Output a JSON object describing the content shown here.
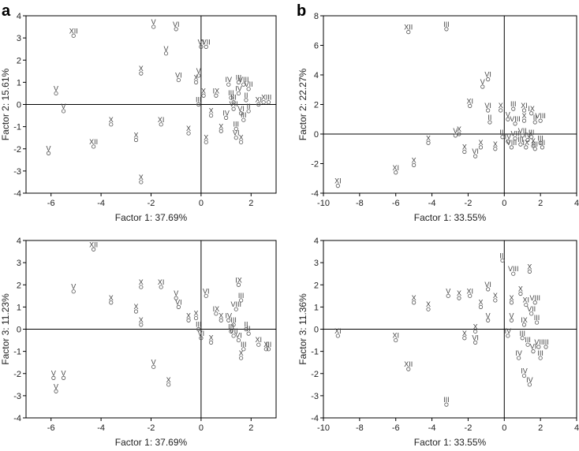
{
  "figure": {
    "panel_letters": [
      "a",
      "b"
    ]
  },
  "chart_data": [
    {
      "type": "scatter",
      "panel": "a",
      "xlabel": "Factor 1: 37.69%",
      "ylabel": "Factor 2: 15.61%",
      "xlim": [
        -7,
        3
      ],
      "ylim": [
        -4,
        4
      ],
      "xticks": [
        -6,
        -4,
        -2,
        0,
        2
      ],
      "yticks": [
        -4,
        -3,
        -2,
        -1,
        0,
        1,
        2,
        3,
        4
      ],
      "points": [
        {
          "x": -5.1,
          "y": 3.1,
          "label": "XII"
        },
        {
          "x": -5.8,
          "y": 0.5,
          "label": "V"
        },
        {
          "x": -5.5,
          "y": -0.3,
          "label": "V"
        },
        {
          "x": -6.1,
          "y": -2.2,
          "label": "V"
        },
        {
          "x": -4.3,
          "y": -1.9,
          "label": "XII"
        },
        {
          "x": -3.6,
          "y": -0.9,
          "label": "X"
        },
        {
          "x": -2.6,
          "y": -1.6,
          "label": "X"
        },
        {
          "x": -2.4,
          "y": 1.4,
          "label": "X"
        },
        {
          "x": -2.4,
          "y": -3.5,
          "label": "X"
        },
        {
          "x": -1.9,
          "y": 3.5,
          "label": "V"
        },
        {
          "x": -1.4,
          "y": 2.3,
          "label": "V"
        },
        {
          "x": -1.6,
          "y": -0.9,
          "label": "XI"
        },
        {
          "x": -1.0,
          "y": 3.4,
          "label": "VI"
        },
        {
          "x": -0.9,
          "y": 1.1,
          "label": "VI"
        },
        {
          "x": -0.5,
          "y": -1.3,
          "label": "X"
        },
        {
          "x": -0.2,
          "y": 1.0,
          "label": "X"
        },
        {
          "x": -0.1,
          "y": 1.3,
          "label": "V"
        },
        {
          "x": 0.0,
          "y": 2.6,
          "label": "VI"
        },
        {
          "x": 0.2,
          "y": 2.6,
          "label": "VII"
        },
        {
          "x": 0.1,
          "y": 0.4,
          "label": "X"
        },
        {
          "x": 0.2,
          "y": -1.7,
          "label": "X"
        },
        {
          "x": -0.1,
          "y": 0.0,
          "label": "III"
        },
        {
          "x": 0.6,
          "y": 0.4,
          "label": "IX"
        },
        {
          "x": 0.4,
          "y": -0.5,
          "label": "X"
        },
        {
          "x": 0.8,
          "y": -1.2,
          "label": "X"
        },
        {
          "x": 1.0,
          "y": -0.6,
          "label": "IV"
        },
        {
          "x": 1.1,
          "y": 0.9,
          "label": "IV"
        },
        {
          "x": 1.2,
          "y": 0.3,
          "label": "III"
        },
        {
          "x": 1.3,
          "y": 0.1,
          "label": "III"
        },
        {
          "x": 1.3,
          "y": -0.2,
          "label": "VII"
        },
        {
          "x": 1.4,
          "y": -1.5,
          "label": "VI"
        },
        {
          "x": 1.4,
          "y": -1.1,
          "label": "III"
        },
        {
          "x": 1.5,
          "y": 1.0,
          "label": "III"
        },
        {
          "x": 1.5,
          "y": 0.5,
          "label": "IV"
        },
        {
          "x": 1.6,
          "y": -0.4,
          "label": "VI"
        },
        {
          "x": 1.6,
          "y": -1.7,
          "label": "X"
        },
        {
          "x": 1.7,
          "y": 0.9,
          "label": "VIII"
        },
        {
          "x": 1.7,
          "y": -0.7,
          "label": "III"
        },
        {
          "x": 1.8,
          "y": 0.2,
          "label": "II"
        },
        {
          "x": 1.9,
          "y": 0.7,
          "label": "VII"
        },
        {
          "x": 1.9,
          "y": -0.3,
          "label": "II"
        },
        {
          "x": 2.3,
          "y": 0.0,
          "label": "XI"
        },
        {
          "x": 2.5,
          "y": 0.1,
          "label": "X"
        },
        {
          "x": 2.7,
          "y": 0.1,
          "label": "III"
        }
      ]
    },
    {
      "type": "scatter",
      "panel": "b",
      "xlabel": "Factor 1: 33.55%",
      "ylabel": "Factor 2: 22.27%",
      "xlim": [
        -10,
        4
      ],
      "ylim": [
        -4,
        8
      ],
      "xticks": [
        -10,
        -8,
        -6,
        -4,
        -2,
        0,
        2,
        4
      ],
      "yticks": [
        -4,
        -2,
        0,
        2,
        4,
        6,
        8
      ],
      "points": [
        {
          "x": -5.3,
          "y": 6.9,
          "label": "XII"
        },
        {
          "x": -3.2,
          "y": 7.1,
          "label": "III"
        },
        {
          "x": -0.9,
          "y": 3.7,
          "label": "VI"
        },
        {
          "x": -1.2,
          "y": 3.2,
          "label": "V"
        },
        {
          "x": -1.9,
          "y": 1.9,
          "label": "XI"
        },
        {
          "x": -0.9,
          "y": 1.6,
          "label": "VI"
        },
        {
          "x": -0.2,
          "y": 1.6,
          "label": "X"
        },
        {
          "x": 0.5,
          "y": 1.7,
          "label": "III"
        },
        {
          "x": 1.1,
          "y": 1.6,
          "label": "XI"
        },
        {
          "x": 1.5,
          "y": 1.4,
          "label": "IX"
        },
        {
          "x": -0.8,
          "y": 0.8,
          "label": "II"
        },
        {
          "x": 0.2,
          "y": 1.0,
          "label": "V"
        },
        {
          "x": 0.6,
          "y": 0.7,
          "label": "VIII"
        },
        {
          "x": 1.1,
          "y": 0.9,
          "label": "X"
        },
        {
          "x": 1.7,
          "y": 0.8,
          "label": "II"
        },
        {
          "x": 2.0,
          "y": 0.9,
          "label": "VIII"
        },
        {
          "x": -2.7,
          "y": -0.1,
          "label": "V"
        },
        {
          "x": -2.5,
          "y": 0.0,
          "label": "X"
        },
        {
          "x": -4.2,
          "y": -0.6,
          "label": "X"
        },
        {
          "x": -2.2,
          "y": -1.2,
          "label": "X"
        },
        {
          "x": -1.6,
          "y": -1.5,
          "label": "VI"
        },
        {
          "x": -1.3,
          "y": -0.9,
          "label": "X"
        },
        {
          "x": -0.5,
          "y": -1.0,
          "label": "X"
        },
        {
          "x": -0.1,
          "y": -0.2,
          "label": "III"
        },
        {
          "x": 0.2,
          "y": -0.5,
          "label": "IV"
        },
        {
          "x": 0.4,
          "y": -0.9,
          "label": "VIII"
        },
        {
          "x": 0.6,
          "y": -0.3,
          "label": "VII"
        },
        {
          "x": 0.9,
          "y": -0.7,
          "label": "III"
        },
        {
          "x": 1.0,
          "y": -0.1,
          "label": "VII"
        },
        {
          "x": 1.2,
          "y": -0.9,
          "label": "IX"
        },
        {
          "x": 1.3,
          "y": -0.4,
          "label": "IV"
        },
        {
          "x": 1.5,
          "y": -0.2,
          "label": "III"
        },
        {
          "x": 1.6,
          "y": -0.8,
          "label": "X"
        },
        {
          "x": 1.7,
          "y": -1.0,
          "label": "III"
        },
        {
          "x": 2.0,
          "y": -0.6,
          "label": "III"
        },
        {
          "x": 2.1,
          "y": -0.9,
          "label": "III"
        },
        {
          "x": -5.0,
          "y": -2.1,
          "label": "X"
        },
        {
          "x": -6.0,
          "y": -2.6,
          "label": "XI"
        },
        {
          "x": -9.2,
          "y": -3.5,
          "label": "XI"
        }
      ]
    },
    {
      "type": "scatter",
      "panel": "a",
      "xlabel": "Factor 1: 37.69%",
      "ylabel": "Factor 3: 11.23%",
      "xlim": [
        -7,
        3
      ],
      "ylim": [
        -4,
        4
      ],
      "xticks": [
        -6,
        -4,
        -2,
        0,
        2
      ],
      "yticks": [
        -4,
        -3,
        -2,
        -1,
        0,
        1,
        2,
        3,
        4
      ],
      "points": [
        {
          "x": -4.3,
          "y": 3.6,
          "label": "XII"
        },
        {
          "x": -5.1,
          "y": 1.7,
          "label": "V"
        },
        {
          "x": -3.6,
          "y": 1.2,
          "label": "X"
        },
        {
          "x": -2.6,
          "y": 0.8,
          "label": "X"
        },
        {
          "x": -2.4,
          "y": 1.9,
          "label": "X"
        },
        {
          "x": -2.4,
          "y": 0.2,
          "label": "X"
        },
        {
          "x": -1.6,
          "y": 1.9,
          "label": "XI"
        },
        {
          "x": -1.0,
          "y": 1.4,
          "label": "V"
        },
        {
          "x": -0.9,
          "y": 1.0,
          "label": "VI"
        },
        {
          "x": -5.9,
          "y": -2.2,
          "label": "V"
        },
        {
          "x": -5.5,
          "y": -2.2,
          "label": "V"
        },
        {
          "x": -5.8,
          "y": -2.8,
          "label": "V"
        },
        {
          "x": -1.9,
          "y": -1.7,
          "label": "V"
        },
        {
          "x": -1.3,
          "y": -2.5,
          "label": "X"
        },
        {
          "x": -0.5,
          "y": 0.4,
          "label": "X"
        },
        {
          "x": -0.2,
          "y": 0.5,
          "label": "X"
        },
        {
          "x": 0.2,
          "y": 1.5,
          "label": "VI"
        },
        {
          "x": -0.1,
          "y": 0.0,
          "label": "III"
        },
        {
          "x": 0.0,
          "y": -0.4,
          "label": "VI"
        },
        {
          "x": 0.4,
          "y": -0.6,
          "label": "X"
        },
        {
          "x": 0.6,
          "y": 0.7,
          "label": "IX"
        },
        {
          "x": 0.8,
          "y": 0.4,
          "label": "X"
        },
        {
          "x": 1.1,
          "y": 0.4,
          "label": "IV"
        },
        {
          "x": 1.2,
          "y": -0.1,
          "label": "III"
        },
        {
          "x": 1.3,
          "y": 0.2,
          "label": "III"
        },
        {
          "x": 1.3,
          "y": -0.3,
          "label": "VII"
        },
        {
          "x": 1.4,
          "y": 0.9,
          "label": "VIII"
        },
        {
          "x": 1.5,
          "y": -0.5,
          "label": "VI"
        },
        {
          "x": 1.5,
          "y": 2.0,
          "label": "IX"
        },
        {
          "x": 1.6,
          "y": 1.3,
          "label": "III"
        },
        {
          "x": 1.6,
          "y": -1.3,
          "label": "X"
        },
        {
          "x": 1.7,
          "y": -0.9,
          "label": "III"
        },
        {
          "x": 1.8,
          "y": 0.0,
          "label": "II"
        },
        {
          "x": 1.9,
          "y": -0.2,
          "label": "II"
        },
        {
          "x": 2.3,
          "y": -0.7,
          "label": "XI"
        },
        {
          "x": 2.6,
          "y": -0.9,
          "label": "X"
        },
        {
          "x": 2.7,
          "y": -0.9,
          "label": "III"
        }
      ]
    },
    {
      "type": "scatter",
      "panel": "b",
      "xlabel": "Factor 1: 33.55%",
      "ylabel": "Factor 3: 11.36%",
      "xlim": [
        -10,
        4
      ],
      "ylim": [
        -4,
        4
      ],
      "xticks": [
        -10,
        -8,
        -6,
        -4,
        -2,
        0,
        2,
        4
      ],
      "yticks": [
        -4,
        -3,
        -2,
        -1,
        0,
        1,
        2,
        3,
        4
      ],
      "points": [
        {
          "x": -9.2,
          "y": -0.3,
          "label": "XI"
        },
        {
          "x": -6.0,
          "y": -0.5,
          "label": "XI"
        },
        {
          "x": -5.3,
          "y": -1.8,
          "label": "XII"
        },
        {
          "x": -5.0,
          "y": 1.2,
          "label": "X"
        },
        {
          "x": -4.2,
          "y": 0.9,
          "label": "X"
        },
        {
          "x": -3.1,
          "y": 1.5,
          "label": "V"
        },
        {
          "x": -3.2,
          "y": -3.4,
          "label": "III"
        },
        {
          "x": -2.5,
          "y": 1.4,
          "label": "X"
        },
        {
          "x": -2.2,
          "y": -0.4,
          "label": "X"
        },
        {
          "x": -1.9,
          "y": 1.5,
          "label": "XI"
        },
        {
          "x": -1.6,
          "y": -0.1,
          "label": "X"
        },
        {
          "x": -1.6,
          "y": -0.6,
          "label": "VI"
        },
        {
          "x": -1.3,
          "y": 1.0,
          "label": "X"
        },
        {
          "x": -0.9,
          "y": 1.8,
          "label": "VI"
        },
        {
          "x": -0.9,
          "y": 0.4,
          "label": "V"
        },
        {
          "x": -0.5,
          "y": 1.3,
          "label": "X"
        },
        {
          "x": -0.1,
          "y": 3.1,
          "label": "III"
        },
        {
          "x": 0.2,
          "y": -0.3,
          "label": "IV"
        },
        {
          "x": 0.4,
          "y": 1.2,
          "label": "X"
        },
        {
          "x": 0.4,
          "y": 0.4,
          "label": "V"
        },
        {
          "x": 0.5,
          "y": 2.5,
          "label": "VIII"
        },
        {
          "x": 0.8,
          "y": -1.3,
          "label": "IV"
        },
        {
          "x": 0.9,
          "y": 1.6,
          "label": "X"
        },
        {
          "x": 1.0,
          "y": -0.4,
          "label": "III"
        },
        {
          "x": 1.1,
          "y": 0.2,
          "label": "IX"
        },
        {
          "x": 1.1,
          "y": -2.1,
          "label": "IV"
        },
        {
          "x": 1.2,
          "y": 1.1,
          "label": "XI"
        },
        {
          "x": 1.3,
          "y": -0.7,
          "label": "III"
        },
        {
          "x": 1.4,
          "y": 2.6,
          "label": "X"
        },
        {
          "x": 1.4,
          "y": -2.5,
          "label": "IV"
        },
        {
          "x": 1.5,
          "y": 0.7,
          "label": "VII"
        },
        {
          "x": 1.6,
          "y": -1.0,
          "label": "VI"
        },
        {
          "x": 1.7,
          "y": 1.2,
          "label": "VIII"
        },
        {
          "x": 1.8,
          "y": 0.3,
          "label": "III"
        },
        {
          "x": 1.9,
          "y": -0.8,
          "label": "VII"
        },
        {
          "x": 2.0,
          "y": -1.3,
          "label": "III"
        },
        {
          "x": 2.3,
          "y": -0.8,
          "label": "III"
        }
      ]
    }
  ]
}
